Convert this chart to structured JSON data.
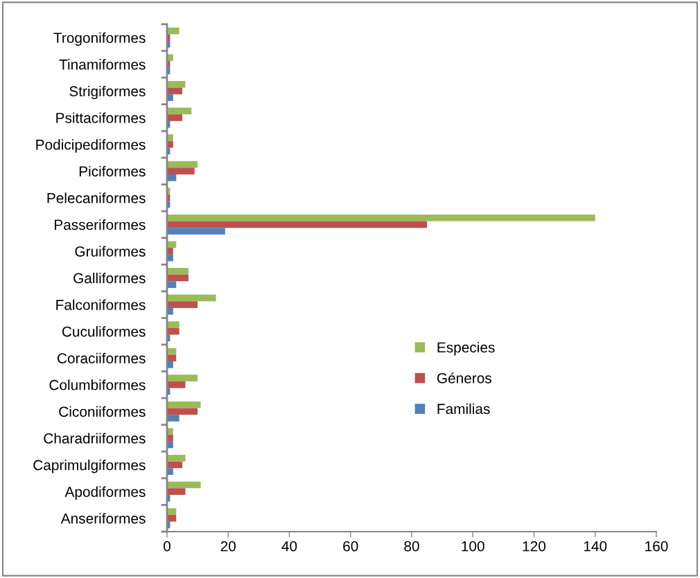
{
  "chart_data": {
    "type": "bar",
    "orientation": "horizontal",
    "categories": [
      "Trogoniformes",
      "Tinamiformes",
      "Strigiformes",
      "Psittaciformes",
      "Podicipediformes",
      "Piciformes",
      "Pelecaniformes",
      "Passeriformes",
      "Gruiformes",
      "Galliformes",
      "Falconiformes",
      "Cuculiformes",
      "Coraciiformes",
      "Columbiformes",
      "Ciconiiformes",
      "Charadriiformes",
      "Caprimulgiformes",
      "Apodiformes",
      "Anseriformes"
    ],
    "series": [
      {
        "name": "Especies",
        "color": "#9bbb59",
        "values": [
          4,
          2,
          6,
          8,
          2,
          10,
          1,
          140,
          3,
          7,
          16,
          4,
          3,
          10,
          11,
          2,
          6,
          11,
          3
        ]
      },
      {
        "name": "Géneros",
        "color": "#c0504d",
        "values": [
          1,
          1,
          5,
          5,
          2,
          9,
          1,
          85,
          2,
          7,
          10,
          4,
          3,
          6,
          10,
          2,
          5,
          6,
          3
        ]
      },
      {
        "name": "Familias",
        "color": "#4f81bd",
        "values": [
          1,
          1,
          2,
          1,
          1,
          3,
          1,
          19,
          2,
          3,
          2,
          1,
          2,
          1,
          4,
          2,
          2,
          1,
          1
        ]
      }
    ],
    "xlim": [
      0,
      160
    ],
    "xticks": [
      0,
      20,
      40,
      60,
      80,
      100,
      120,
      140,
      160
    ],
    "grid": false,
    "legend": "right"
  }
}
